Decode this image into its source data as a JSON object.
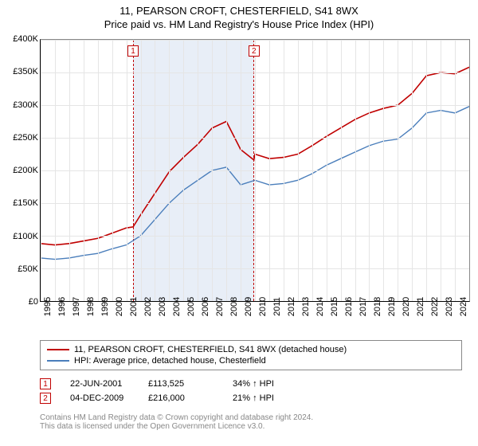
{
  "title": "11, PEARSON CROFT, CHESTERFIELD, S41 8WX",
  "subtitle": "Price paid vs. HM Land Registry's House Price Index (HPI)",
  "chart": {
    "type": "line",
    "background_color": "#ffffff",
    "grid_color": "#e5e5e5",
    "axis_color": "#000000",
    "label_fontsize": 11,
    "ylim": [
      0,
      400000
    ],
    "ytick_step": 50000,
    "yticks": [
      "£0",
      "£50K",
      "£100K",
      "£150K",
      "£200K",
      "£250K",
      "£300K",
      "£350K",
      "£400K"
    ],
    "xlim": [
      1995,
      2025
    ],
    "xticks": [
      "1995",
      "1996",
      "1997",
      "1998",
      "1999",
      "2000",
      "2001",
      "2002",
      "2003",
      "2004",
      "2005",
      "2006",
      "2007",
      "2008",
      "2009",
      "2010",
      "2011",
      "2012",
      "2013",
      "2014",
      "2015",
      "2016",
      "2017",
      "2018",
      "2019",
      "2020",
      "2021",
      "2022",
      "2023",
      "2024"
    ],
    "markers": [
      {
        "num": "1",
        "year": 2001.47,
        "box_top_pct": 2
      },
      {
        "num": "2",
        "year": 2009.93,
        "box_top_pct": 2
      }
    ],
    "marker_band": {
      "from_year": 2001.47,
      "to_year": 2009.93,
      "fill": "#e8eef7",
      "border": "#c00000"
    },
    "series": [
      {
        "name": "11, PEARSON CROFT, CHESTERFIELD, S41 8WX (detached house)",
        "color": "#c00000",
        "line_width": 1.6,
        "data": [
          [
            1995,
            88000
          ],
          [
            1996,
            86000
          ],
          [
            1997,
            88000
          ],
          [
            1998,
            92000
          ],
          [
            1999,
            96000
          ],
          [
            2000,
            104000
          ],
          [
            2001,
            112000
          ],
          [
            2001.47,
            113525
          ],
          [
            2002,
            132000
          ],
          [
            2003,
            165000
          ],
          [
            2004,
            198000
          ],
          [
            2005,
            220000
          ],
          [
            2006,
            240000
          ],
          [
            2007,
            265000
          ],
          [
            2008,
            275000
          ],
          [
            2009,
            232000
          ],
          [
            2009.93,
            216000
          ],
          [
            2010,
            225000
          ],
          [
            2011,
            218000
          ],
          [
            2012,
            220000
          ],
          [
            2013,
            225000
          ],
          [
            2014,
            238000
          ],
          [
            2015,
            252000
          ],
          [
            2016,
            265000
          ],
          [
            2017,
            278000
          ],
          [
            2018,
            288000
          ],
          [
            2019,
            295000
          ],
          [
            2020,
            300000
          ],
          [
            2021,
            318000
          ],
          [
            2022,
            345000
          ],
          [
            2023,
            350000
          ],
          [
            2024,
            348000
          ],
          [
            2025,
            358000
          ]
        ]
      },
      {
        "name": "HPI: Average price, detached house, Chesterfield",
        "color": "#4a7ebb",
        "line_width": 1.4,
        "data": [
          [
            1995,
            66000
          ],
          [
            1996,
            64000
          ],
          [
            1997,
            66000
          ],
          [
            1998,
            70000
          ],
          [
            1999,
            73000
          ],
          [
            2000,
            80000
          ],
          [
            2001,
            86000
          ],
          [
            2002,
            100000
          ],
          [
            2003,
            125000
          ],
          [
            2004,
            150000
          ],
          [
            2005,
            170000
          ],
          [
            2006,
            185000
          ],
          [
            2007,
            200000
          ],
          [
            2008,
            205000
          ],
          [
            2009,
            178000
          ],
          [
            2010,
            185000
          ],
          [
            2011,
            178000
          ],
          [
            2012,
            180000
          ],
          [
            2013,
            185000
          ],
          [
            2014,
            195000
          ],
          [
            2015,
            208000
          ],
          [
            2016,
            218000
          ],
          [
            2017,
            228000
          ],
          [
            2018,
            238000
          ],
          [
            2019,
            245000
          ],
          [
            2020,
            248000
          ],
          [
            2021,
            265000
          ],
          [
            2022,
            288000
          ],
          [
            2023,
            292000
          ],
          [
            2024,
            288000
          ],
          [
            2025,
            298000
          ]
        ]
      }
    ]
  },
  "legend": {
    "items": [
      {
        "color": "#c00000",
        "label": "11, PEARSON CROFT, CHESTERFIELD, S41 8WX (detached house)"
      },
      {
        "color": "#4a7ebb",
        "label": "HPI: Average price, detached house, Chesterfield"
      }
    ]
  },
  "transactions": [
    {
      "num": "1",
      "date": "22-JUN-2001",
      "price": "£113,525",
      "delta": "34% ↑ HPI"
    },
    {
      "num": "2",
      "date": "04-DEC-2009",
      "price": "£216,000",
      "delta": "21% ↑ HPI"
    }
  ],
  "footer": {
    "line1": "Contains HM Land Registry data © Crown copyright and database right 2024.",
    "line2": "This data is licensed under the Open Government Licence v3.0."
  }
}
